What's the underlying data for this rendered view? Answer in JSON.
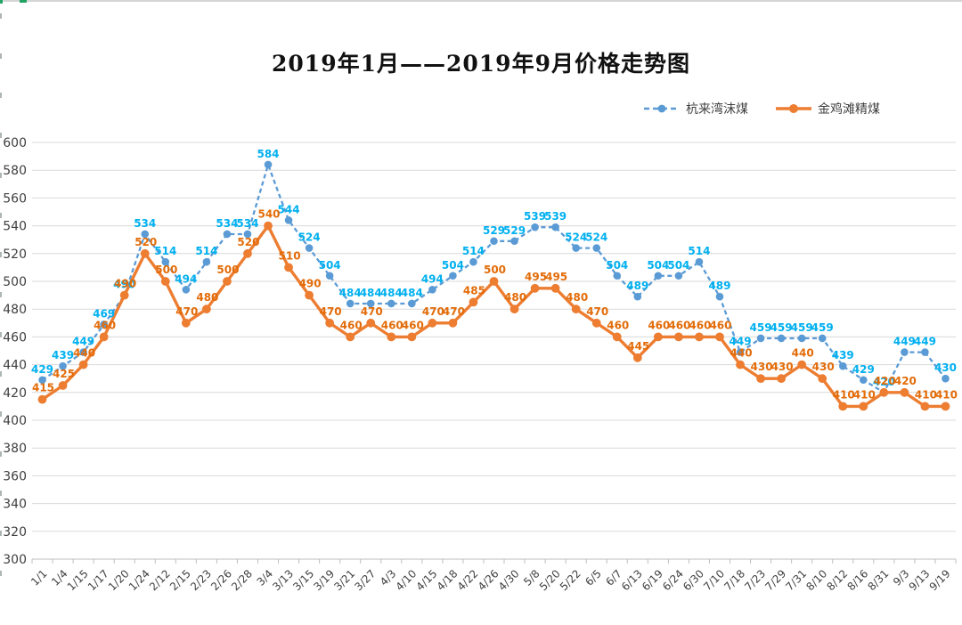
{
  "title": "2019年1月——2019年9月价格走势图",
  "chart_data": {
    "type": "line",
    "title": "2019年1月——2019年9月价格走势图",
    "categories": [
      "1/1",
      "1/4",
      "1/15",
      "1/17",
      "1/20",
      "1/24",
      "2/12",
      "2/15",
      "2/23",
      "2/26",
      "2/28",
      "3/4",
      "3/13",
      "3/15",
      "3/19",
      "3/21",
      "3/27",
      "4/3",
      "4/10",
      "4/15",
      "4/18",
      "4/22",
      "4/26",
      "4/30",
      "5/8",
      "5/20",
      "5/22",
      "6/5",
      "6/7",
      "6/13",
      "6/19",
      "6/24",
      "6/30",
      "7/10",
      "7/18",
      "7/23",
      "7/29",
      "7/31",
      "8/10",
      "8/12",
      "8/16",
      "8/31",
      "9/3",
      "9/13",
      "9/19"
    ],
    "series": [
      {
        "name": "杭来湾沫煤",
        "values": [
          429,
          439,
          449,
          469,
          490,
          534,
          514,
          494,
          514,
          534,
          534,
          584,
          544,
          524,
          504,
          484,
          484,
          484,
          484,
          494,
          504,
          514,
          529,
          529,
          539,
          539,
          524,
          524,
          504,
          489,
          504,
          504,
          514,
          489,
          449,
          459,
          459,
          459,
          459,
          439,
          429,
          420,
          449,
          449,
          430
        ],
        "line_color": "#5B9BD5",
        "label_color": "#00B0F0",
        "line_style": "dashed",
        "marker": "circle"
      },
      {
        "name": "金鸡滩精煤",
        "values": [
          415,
          425,
          440,
          460,
          490,
          520,
          500,
          470,
          480,
          500,
          520,
          540,
          510,
          490,
          470,
          460,
          470,
          460,
          460,
          470,
          470,
          485,
          500,
          480,
          495,
          495,
          480,
          470,
          460,
          445,
          460,
          460,
          460,
          460,
          440,
          430,
          430,
          440,
          430,
          410,
          410,
          420,
          420,
          410,
          410
        ],
        "line_color": "#ED7D31",
        "label_color": "#E36C09",
        "line_style": "solid",
        "marker": "circle"
      }
    ],
    "ylim": [
      300,
      600
    ],
    "ytick_step": 20,
    "grid": true,
    "data_labels": true,
    "legend_position": "top-right",
    "xlabel": "",
    "ylabel": ""
  },
  "colors": {
    "background": "#FFFFFF",
    "gridline": "#D9D9D9",
    "axis_line": "#BFBFBF",
    "axis_text": "#404040",
    "worksheet_accent_green": "#21A366"
  }
}
